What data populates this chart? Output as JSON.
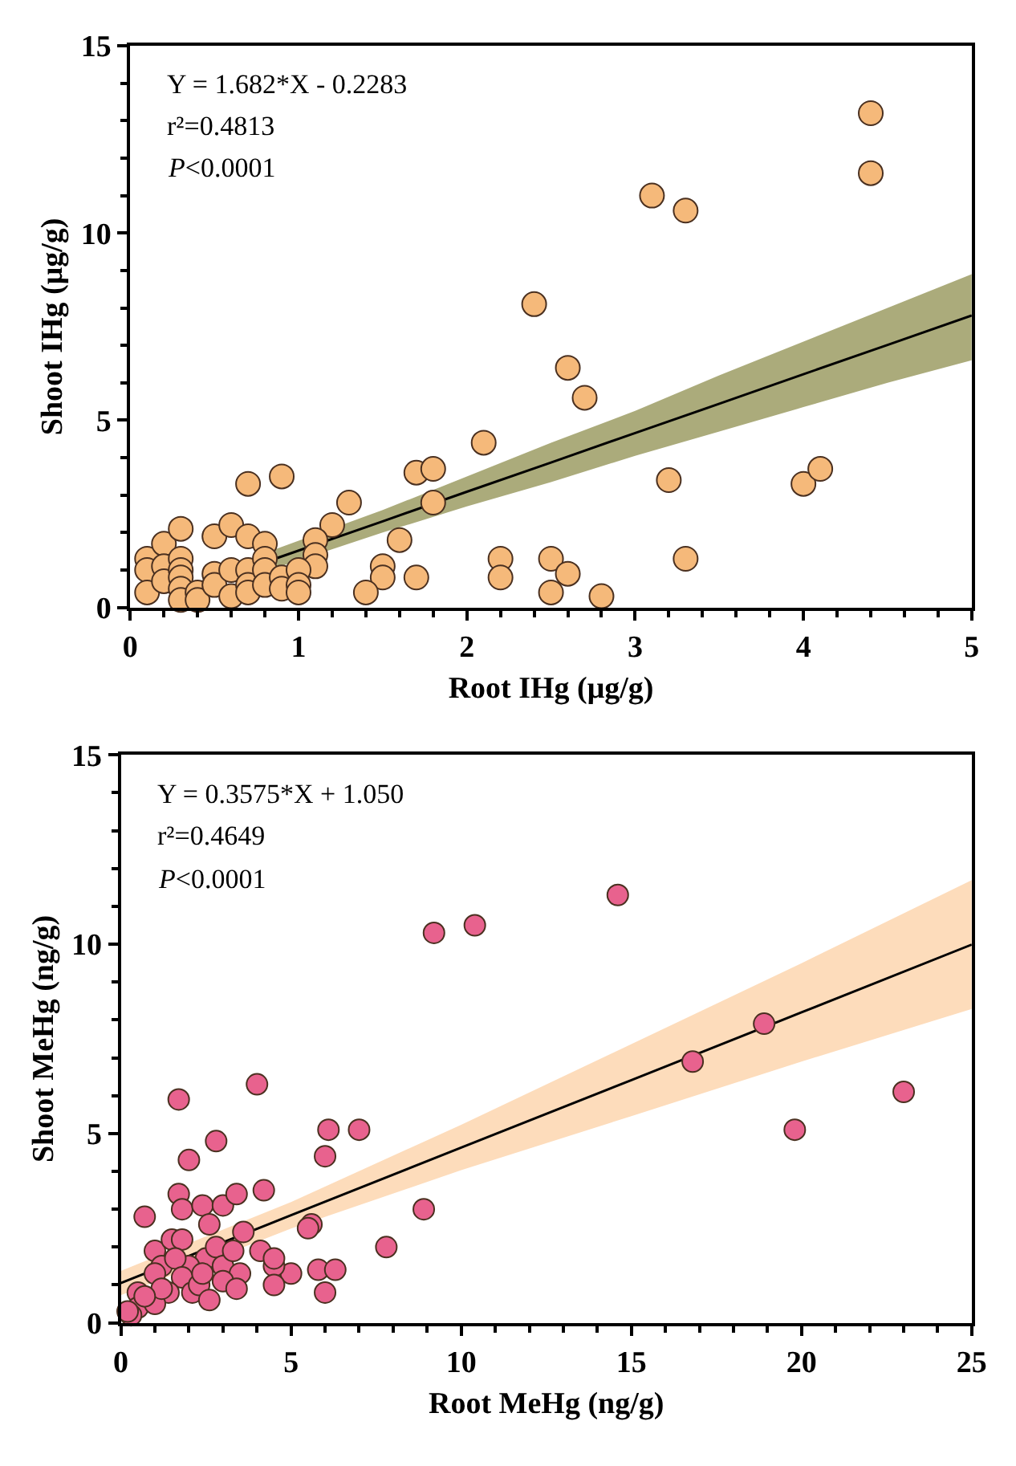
{
  "chart_data": [
    {
      "type": "scatter",
      "xlabel": "Root IHg (μg/g)",
      "ylabel": "Shoot IHg (μg/g)",
      "annotations": [
        "Y = 1.682*X - 0.2283",
        "r²=0.4813",
        "P<0.0001"
      ],
      "xlim": [
        0,
        5
      ],
      "ylim": [
        0,
        15
      ],
      "xticks": [
        0,
        {
          "value": 0.2,
          "label": null
        },
        {
          "value": 0.4,
          "label": null
        },
        {
          "value": 0.6,
          "label": null
        },
        {
          "value": 0.8,
          "label": null
        },
        1,
        {
          "value": 1.2,
          "label": null
        },
        {
          "value": 1.4,
          "label": null
        },
        {
          "value": 1.6,
          "label": null
        },
        {
          "value": 1.8,
          "label": null
        },
        2,
        {
          "value": 2.2,
          "label": null
        },
        {
          "value": 2.4,
          "label": null
        },
        {
          "value": 2.6,
          "label": null
        },
        {
          "value": 2.8,
          "label": null
        },
        3,
        {
          "value": 3.2,
          "label": null
        },
        {
          "value": 3.4,
          "label": null
        },
        {
          "value": 3.6,
          "label": null
        },
        {
          "value": 3.8,
          "label": null
        },
        4,
        {
          "value": 4.2,
          "label": null
        },
        {
          "value": 4.4,
          "label": null
        },
        {
          "value": 4.6,
          "label": null
        },
        {
          "value": 4.8,
          "label": null
        },
        5
      ],
      "yticks": [
        0,
        {
          "value": 1,
          "label": null
        },
        {
          "value": 2,
          "label": null
        },
        {
          "value": 3,
          "label": null
        },
        {
          "value": 4,
          "label": null
        },
        5,
        {
          "value": 6,
          "label": null
        },
        {
          "value": 7,
          "label": null
        },
        {
          "value": 8,
          "label": null
        },
        {
          "value": 9,
          "label": null
        },
        10,
        {
          "value": 11,
          "label": null
        },
        {
          "value": 12,
          "label": null
        },
        {
          "value": 13,
          "label": null
        },
        {
          "value": 14,
          "label": null
        },
        15
      ],
      "series": [
        {
          "type": "line",
          "color": "#000000",
          "x": [
            0.86,
            1.5,
            2,
            2.5,
            3,
            3.5,
            4,
            4.5,
            5
          ],
          "values": [
            1.3,
            2.3,
            3.09,
            3.87,
            4.66,
            5.44,
            6.23,
            7.01,
            7.8
          ],
          "lower": [
            1.05,
            2.0,
            2.7,
            3.35,
            4.05,
            4.7,
            5.35,
            6.0,
            6.6
          ],
          "upper": [
            1.55,
            2.6,
            3.5,
            4.4,
            5.25,
            6.2,
            7.1,
            8.0,
            8.9
          ]
        },
        {
          "color": "#f5b97a",
          "marker": "circle",
          "x": [
            4.4,
            4.4,
            3.1,
            3.3,
            2.4,
            2.6,
            2.7,
            2.1,
            1.7,
            1.8,
            1.8,
            1.3,
            0.9,
            0.7,
            1.2,
            1.6,
            3.2,
            4.0,
            4.1,
            3.3,
            2.2,
            2.2,
            2.5,
            2.5,
            2.6,
            2.8,
            1.5,
            1.5,
            1.4,
            1.7,
            1.1,
            1.1,
            1.1,
            0.1,
            0.1,
            0.1,
            0.2,
            0.2,
            0.2,
            0.3,
            0.3,
            0.3,
            0.3,
            0.3,
            0.3,
            0.4,
            0.4,
            0.5,
            0.5,
            0.5,
            0.6,
            0.6,
            0.6,
            0.7,
            0.7,
            0.7,
            0.7,
            0.8,
            0.8,
            0.8,
            0.8,
            0.9,
            0.9,
            1.0,
            1.0,
            1.0
          ],
          "values": [
            13.2,
            11.6,
            11.0,
            10.6,
            8.1,
            6.4,
            5.6,
            4.4,
            3.6,
            3.7,
            2.8,
            2.8,
            3.5,
            3.3,
            2.2,
            1.8,
            3.4,
            3.3,
            3.7,
            1.3,
            1.3,
            0.8,
            1.3,
            0.4,
            0.9,
            0.3,
            1.1,
            0.8,
            0.4,
            0.8,
            1.8,
            1.4,
            1.1,
            1.3,
            1.0,
            0.4,
            1.7,
            1.1,
            0.7,
            2.1,
            1.3,
            1.0,
            0.8,
            0.5,
            0.2,
            0.4,
            0.2,
            1.9,
            0.9,
            0.6,
            2.2,
            1.0,
            0.3,
            1.9,
            1.0,
            0.6,
            0.4,
            1.7,
            1.3,
            1.0,
            0.6,
            0.8,
            0.5,
            1.0,
            0.6,
            0.4
          ]
        }
      ]
    },
    {
      "type": "scatter",
      "xlabel": "Root MeHg (ng/g)",
      "ylabel": "Shoot MeHg (ng/g)",
      "annotations": [
        "Y = 0.3575*X + 1.050",
        "r²=0.4649",
        "P<0.0001"
      ],
      "xlim": [
        0,
        25
      ],
      "ylim": [
        0,
        15
      ],
      "xticks": [
        0,
        {
          "value": 1,
          "label": null
        },
        {
          "value": 2,
          "label": null
        },
        {
          "value": 3,
          "label": null
        },
        {
          "value": 4,
          "label": null
        },
        5,
        {
          "value": 6,
          "label": null
        },
        {
          "value": 7,
          "label": null
        },
        {
          "value": 8,
          "label": null
        },
        {
          "value": 9,
          "label": null
        },
        10,
        {
          "value": 11,
          "label": null
        },
        {
          "value": 12,
          "label": null
        },
        {
          "value": 13,
          "label": null
        },
        {
          "value": 14,
          "label": null
        },
        15,
        {
          "value": 16,
          "label": null
        },
        {
          "value": 17,
          "label": null
        },
        {
          "value": 18,
          "label": null
        },
        {
          "value": 19,
          "label": null
        },
        20,
        {
          "value": 21,
          "label": null
        },
        {
          "value": 22,
          "label": null
        },
        {
          "value": 23,
          "label": null
        },
        {
          "value": 24,
          "label": null
        },
        25
      ],
      "yticks": [
        0,
        {
          "value": 1,
          "label": null
        },
        {
          "value": 2,
          "label": null
        },
        {
          "value": 3,
          "label": null
        },
        {
          "value": 4,
          "label": null
        },
        5,
        {
          "value": 6,
          "label": null
        },
        {
          "value": 7,
          "label": null
        },
        {
          "value": 8,
          "label": null
        },
        {
          "value": 9,
          "label": null
        },
        10,
        {
          "value": 11,
          "label": null
        },
        {
          "value": 12,
          "label": null
        },
        {
          "value": 13,
          "label": null
        },
        {
          "value": 14,
          "label": null
        },
        15
      ],
      "series": [
        {
          "type": "line",
          "color": "#000000",
          "x": [
            0,
            5,
            10,
            15,
            20,
            25
          ],
          "values": [
            1.05,
            2.84,
            4.63,
            6.41,
            8.2,
            9.99
          ],
          "lower": [
            0.73,
            2.49,
            4.03,
            5.46,
            6.9,
            8.29
          ],
          "upper": [
            1.37,
            3.19,
            5.23,
            7.36,
            9.5,
            11.69
          ]
        },
        {
          "color": "#e8628e",
          "marker": "circle",
          "x": [
            14.6,
            10.4,
            9.2,
            4.0,
            1.7,
            18.9,
            16.8,
            23,
            19.8,
            7.0,
            6.1,
            6.0,
            2.8,
            2.0,
            8.9,
            7.8,
            5.6,
            5.5,
            4.2,
            1.7,
            1.8,
            2.4,
            3.0,
            3.4,
            3.6,
            0.7,
            2.6,
            5.8,
            6.3,
            5.0,
            4.5,
            4.1,
            4.5,
            6.0,
            4.5,
            2.5,
            2.8,
            3.0,
            2.0,
            1.0,
            1.5,
            1.8,
            3.3,
            3.5,
            1.2,
            1.0,
            1.6,
            1.8,
            2.1,
            2.3,
            2.6,
            1.4,
            0.5,
            0.5,
            0.3,
            0.2,
            1.0,
            1.2,
            0.7,
            3.0,
            3.4,
            2.4
          ],
          "values": [
            11.3,
            10.5,
            10.3,
            6.3,
            5.9,
            7.9,
            6.9,
            6.1,
            5.1,
            5.1,
            5.1,
            4.4,
            4.8,
            4.3,
            3.0,
            2.0,
            2.6,
            2.5,
            3.5,
            3.4,
            3.0,
            3.1,
            3.1,
            3.4,
            2.4,
            2.8,
            2.6,
            1.4,
            1.4,
            1.3,
            1.5,
            1.9,
            1.7,
            0.8,
            1.0,
            1.7,
            2.0,
            1.5,
            1.5,
            1.9,
            2.2,
            2.2,
            1.9,
            1.3,
            1.5,
            1.3,
            1.7,
            1.2,
            0.8,
            1.0,
            0.6,
            0.8,
            0.8,
            0.4,
            0.2,
            0.3,
            0.5,
            0.9,
            0.7,
            1.1,
            0.9,
            1.3
          ]
        }
      ]
    }
  ]
}
